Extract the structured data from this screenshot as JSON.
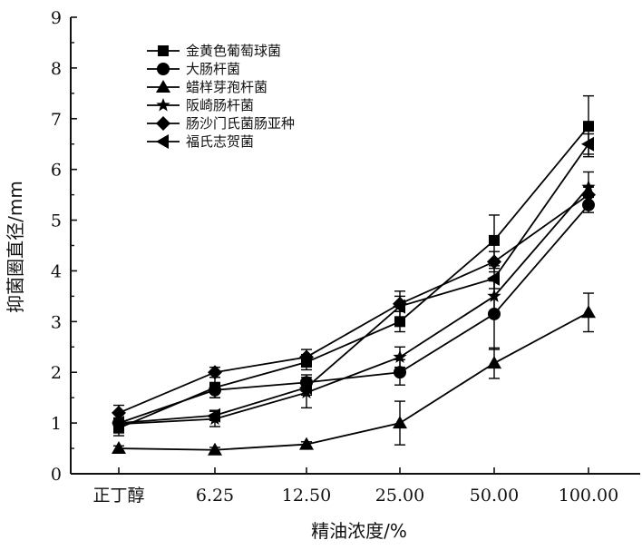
{
  "chart_data": {
    "type": "line",
    "xlabel": "精油浓度/%",
    "ylabel": "抑菌圈直径/mm",
    "categories": [
      "正丁醇",
      "6.25",
      "12.50",
      "25.00",
      "50.00",
      "100.00"
    ],
    "yticks": [
      "0",
      "1",
      "2",
      "3",
      "4",
      "5",
      "6",
      "7",
      "8",
      "9"
    ],
    "ylim": [
      0,
      9
    ],
    "grid": false,
    "legend_position": "top-left",
    "series": [
      {
        "name": "金黄色葡萄球菌",
        "marker": "square",
        "values": [
          0.9,
          1.7,
          2.2,
          3.0,
          4.6,
          6.85
        ],
        "errors": [
          0.15,
          0.2,
          0.15,
          0.2,
          0.5,
          0.6
        ]
      },
      {
        "name": "大肠杆菌",
        "marker": "circle",
        "values": [
          1.0,
          1.65,
          1.8,
          2.0,
          3.15,
          5.3
        ],
        "errors": [
          0.1,
          0.15,
          0.15,
          0.25,
          0.7,
          0.15
        ]
      },
      {
        "name": "蜡样芽孢杆菌",
        "marker": "triangle-up",
        "values": [
          0.5,
          0.47,
          0.58,
          1.0,
          2.18,
          3.18
        ],
        "errors": [
          0.05,
          0.05,
          0.05,
          0.43,
          0.3,
          0.38
        ]
      },
      {
        "name": "阪崎肠杆菌",
        "marker": "star",
        "values": [
          0.98,
          1.08,
          1.6,
          2.3,
          3.5,
          5.65
        ],
        "errors": [
          0.1,
          0.15,
          0.3,
          0.2,
          0.3,
          0.3
        ]
      },
      {
        "name": "肠沙门氏菌肠亚种",
        "marker": "diamond",
        "values": [
          1.2,
          2.0,
          2.3,
          3.35,
          4.18,
          5.5
        ],
        "errors": [
          0.15,
          0.1,
          0.15,
          0.15,
          0.2,
          0.15
        ]
      },
      {
        "name": "福氏志贺菌",
        "marker": "triangle-left",
        "values": [
          1.0,
          1.15,
          1.7,
          3.3,
          3.85,
          6.5
        ],
        "errors": [
          0.1,
          0.1,
          0.15,
          0.3,
          0.2,
          0.2
        ]
      }
    ]
  }
}
